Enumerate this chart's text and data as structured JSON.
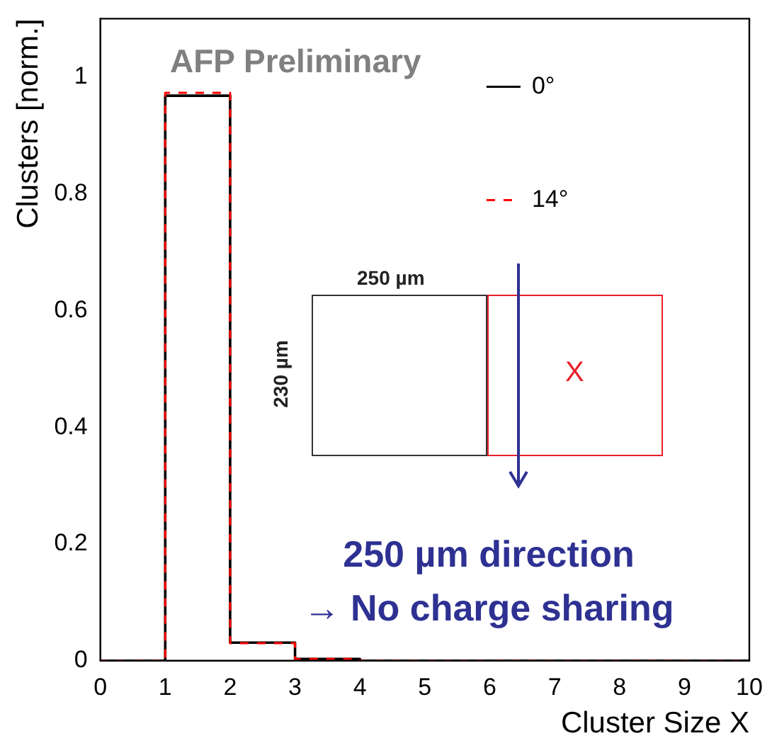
{
  "chart_data": {
    "type": "histogram",
    "xlabel": "Cluster Size X",
    "ylabel": "Clusters [norm.]",
    "bins": [
      0,
      1,
      2,
      3,
      4,
      5,
      6,
      7,
      8,
      9,
      10
    ],
    "series": [
      {
        "name": "0°",
        "color": "#000000",
        "line_style": "solid",
        "values": [
          0,
          0.968,
          0.031,
          0.003,
          0,
          0,
          0,
          0,
          0,
          0
        ]
      },
      {
        "name": "14°",
        "color": "#ff0000",
        "line_style": "dashed",
        "values": [
          0,
          0.973,
          0.03,
          0.003,
          0,
          0,
          0,
          0,
          0,
          0
        ]
      }
    ],
    "xlim": [
      0,
      10
    ],
    "xticks": [
      0,
      1,
      2,
      3,
      4,
      5,
      6,
      7,
      8,
      9,
      10
    ],
    "ylim": [
      0,
      1.1
    ],
    "yticks": [
      0,
      0.2,
      0.4,
      0.6,
      0.8,
      1
    ],
    "grid": false,
    "legend": "top right",
    "annotations": [
      "AFP Preliminary",
      "250 µm",
      "230 µm",
      "X",
      "250 µm direction\n→ No charge sharing"
    ]
  }
}
